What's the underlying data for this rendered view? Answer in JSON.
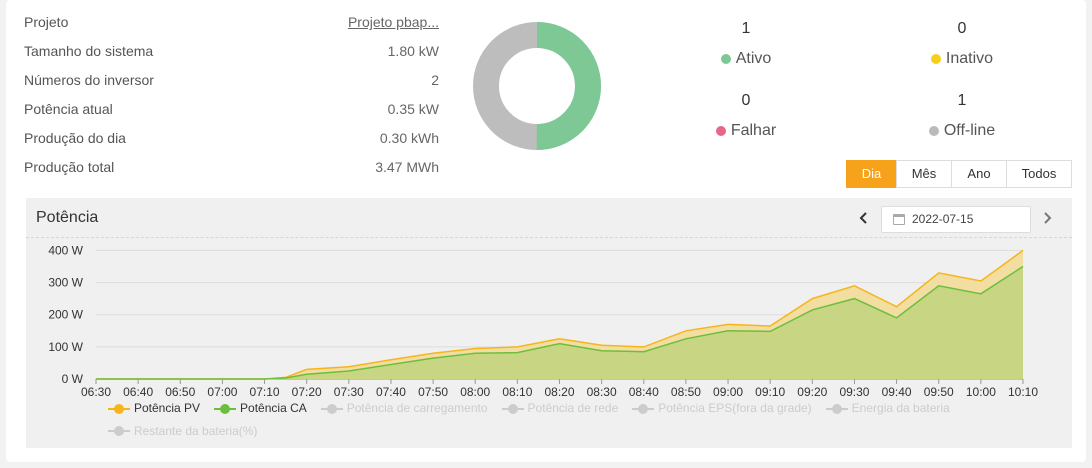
{
  "info": [
    {
      "label": "Projeto",
      "value": "Projeto pbap..."
    },
    {
      "label": "Tamanho do sistema",
      "value": "1.80 kW"
    },
    {
      "label": "Números do inversor",
      "value": "2"
    },
    {
      "label": "Potência atual",
      "value": "0.35 kW"
    },
    {
      "label": "Produção do dia",
      "value": "0.30 kWh"
    },
    {
      "label": "Produção total",
      "value": "3.47 MWh"
    }
  ],
  "status": {
    "ativo": {
      "count": "1",
      "label": "Ativo",
      "color": "#7ec896"
    },
    "inativo": {
      "count": "0",
      "label": "Inativo",
      "color": "#f5cf1a"
    },
    "falhar": {
      "count": "0",
      "label": "Falhar",
      "color": "#e8668a"
    },
    "offline": {
      "count": "1",
      "label": "Off-line",
      "color": "#bbbbbb"
    }
  },
  "donut": {
    "active_fraction": 0.5,
    "active_color": "#7ec896",
    "offline_color": "#bdbdbd"
  },
  "tabs": [
    {
      "label": "Dia",
      "active": true
    },
    {
      "label": "Mês",
      "active": false
    },
    {
      "label": "Ano",
      "active": false
    },
    {
      "label": "Todos",
      "active": false
    }
  ],
  "panel": {
    "title": "Potência",
    "prev_icon": "chevron-left-icon",
    "next_icon": "chevron-right-icon",
    "calendar_icon": "calendar-icon",
    "date": "2022-07-15"
  },
  "chart_data": {
    "type": "area",
    "x": [
      "06:30",
      "06:40",
      "06:50",
      "07:00",
      "07:10",
      "07:15",
      "07:20",
      "07:30",
      "07:40",
      "07:50",
      "08:00",
      "08:10",
      "08:20",
      "08:30",
      "08:40",
      "08:50",
      "09:00",
      "09:10",
      "09:20",
      "09:30",
      "09:40",
      "09:50",
      "10:00",
      "10:10"
    ],
    "x_ticks": [
      "06:30",
      "06:40",
      "06:50",
      "07:00",
      "07:10",
      "07:20",
      "07:30",
      "07:40",
      "07:50",
      "08:00",
      "08:10",
      "08:20",
      "08:30",
      "08:40",
      "08:50",
      "09:00",
      "09:10",
      "09:20",
      "09:30",
      "09:40",
      "09:50",
      "10:00",
      "10:10"
    ],
    "y_ticks": [
      "0 W",
      "100 W",
      "200 W",
      "300 W",
      "400 W"
    ],
    "ylim": [
      0,
      420
    ],
    "series": [
      {
        "name": "Potência PV",
        "color": "#f7b51b",
        "fill": "#f2dea0",
        "values": [
          0,
          0,
          0,
          0,
          0,
          5,
          30,
          38,
          60,
          80,
          95,
          100,
          125,
          105,
          100,
          150,
          170,
          165,
          250,
          290,
          225,
          330,
          305,
          400
        ]
      },
      {
        "name": "Potência CA",
        "color": "#6cbf3d",
        "fill": "#c8d683",
        "values": [
          0,
          0,
          0,
          0,
          0,
          3,
          15,
          25,
          45,
          65,
          80,
          82,
          110,
          88,
          85,
          125,
          150,
          148,
          215,
          250,
          190,
          290,
          265,
          350
        ]
      }
    ],
    "legend": [
      {
        "name": "Potência PV",
        "color": "#f7b51b",
        "enabled": true
      },
      {
        "name": "Potência CA",
        "color": "#6cbf3d",
        "enabled": true
      },
      {
        "name": "Potência de carregamento",
        "color": "#cccccc",
        "enabled": false
      },
      {
        "name": "Potência de rede",
        "color": "#cccccc",
        "enabled": false
      },
      {
        "name": "Potência EPS(fora da grade)",
        "color": "#cccccc",
        "enabled": false
      },
      {
        "name": "Energia da bateria",
        "color": "#cccccc",
        "enabled": false
      },
      {
        "name": "Restante da bateria(%)",
        "color": "#cccccc",
        "enabled": false
      }
    ],
    "legend_placement": "bottom",
    "grid": true
  }
}
